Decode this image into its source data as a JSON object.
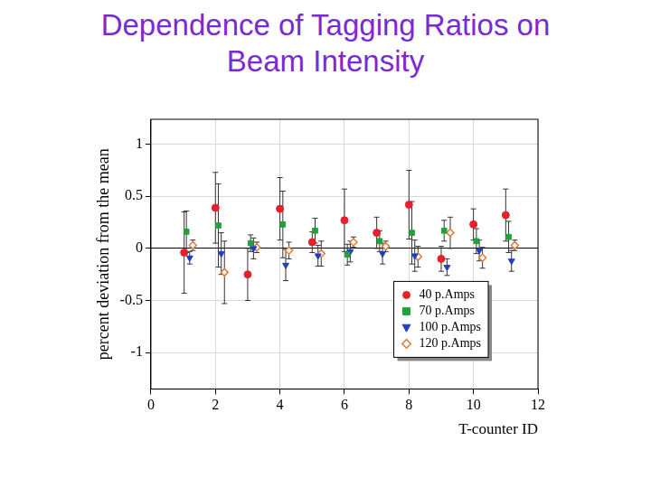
{
  "chart_data": {
    "type": "scatter",
    "title": "Dependence of Tagging Ratios on Beam Intensity",
    "x_label": "T-counter ID",
    "y_label": "percent deviation from the mean",
    "xlim": [
      0,
      12
    ],
    "xticks": [
      0,
      2,
      4,
      6,
      8,
      10,
      12
    ],
    "ylim": [
      -1.35,
      1.24
    ],
    "yticks": [
      -1,
      -0.5,
      0,
      0.5,
      1
    ],
    "grid": true,
    "legend": "lower right",
    "series": [
      {
        "name": "40 p.Amps",
        "color": "#e8202a",
        "marker": "circle",
        "x": [
          1.03,
          2.0,
          3.0,
          4.0,
          5.0,
          6.0,
          7.0,
          8.0,
          9.0,
          10.0,
          11.0
        ],
        "values": [
          -0.04,
          0.39,
          -0.25,
          0.38,
          0.06,
          0.27,
          0.15,
          0.42,
          -0.1,
          0.23,
          0.32
        ],
        "errors": [
          0.39,
          0.34,
          0.25,
          0.3,
          0.1,
          0.3,
          0.15,
          0.33,
          0.12,
          0.15,
          0.25
        ]
      },
      {
        "name": "70 p.Amps",
        "color": "#23a03a",
        "marker": "square",
        "x": [
          1.1,
          2.09,
          3.09,
          4.09,
          5.09,
          6.09,
          7.09,
          8.09,
          9.09,
          10.09,
          11.09
        ],
        "values": [
          0.16,
          0.22,
          0.05,
          0.23,
          0.17,
          -0.06,
          0.07,
          0.15,
          0.17,
          0.07,
          0.11
        ],
        "errors": [
          0.2,
          0.4,
          0.08,
          0.32,
          0.12,
          0.1,
          0.1,
          0.3,
          0.1,
          0.12,
          0.15
        ]
      },
      {
        "name": "100 p.Amps",
        "color": "#1f3fbf",
        "marker": "triangle-down",
        "x": [
          1.2,
          2.18,
          3.18,
          4.18,
          5.18,
          6.18,
          7.18,
          8.18,
          9.18,
          10.18,
          11.18
        ],
        "values": [
          -0.09,
          -0.05,
          0.0,
          -0.16,
          -0.07,
          -0.03,
          -0.05,
          -0.07,
          -0.18,
          -0.02,
          -0.12
        ],
        "errors": [
          0.06,
          0.2,
          0.1,
          0.15,
          0.1,
          0.1,
          0.1,
          0.15,
          0.08,
          0.1,
          0.1
        ]
      },
      {
        "name": "120 p.Amps",
        "color": "#e07b39",
        "marker": "diamond",
        "x": [
          1.3,
          2.28,
          3.28,
          4.28,
          5.28,
          6.28,
          7.28,
          8.28,
          9.28,
          10.28,
          11.28
        ],
        "values": [
          0.03,
          -0.23,
          0.01,
          -0.02,
          -0.05,
          0.06,
          0.02,
          -0.08,
          0.15,
          -0.09,
          0.03
        ],
        "errors": [
          0.05,
          0.3,
          0.05,
          0.08,
          0.12,
          0.05,
          0.05,
          0.1,
          0.15,
          0.1,
          0.05
        ]
      }
    ]
  }
}
